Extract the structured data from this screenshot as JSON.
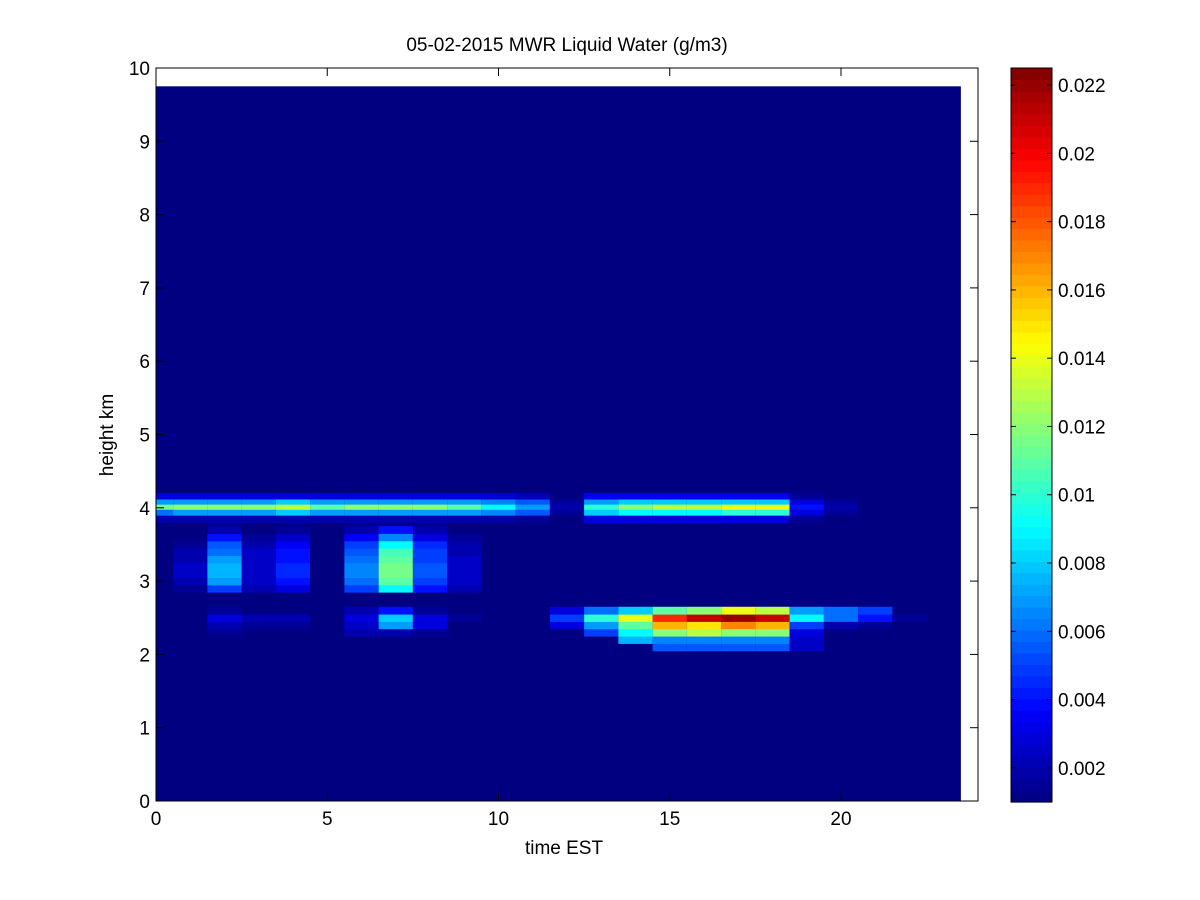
{
  "chart_data": {
    "type": "heatmap",
    "title": "05-02-2015 MWR Liquid Water (g/m3)",
    "xlabel": "time EST",
    "ylabel": "height km",
    "xlim": [
      0,
      24
    ],
    "ylim": [
      0,
      10
    ],
    "xticks": [
      0,
      5,
      10,
      15,
      20
    ],
    "yticks": [
      0,
      1,
      2,
      3,
      4,
      5,
      6,
      7,
      8,
      9,
      10
    ],
    "colormap": "jet",
    "colorbar": {
      "clim": [
        0.001,
        0.0225
      ],
      "ticks": [
        0.002,
        0.004,
        0.006,
        0.008,
        0.01,
        0.012,
        0.014,
        0.016,
        0.018,
        0.02,
        0.022
      ],
      "tick_labels": [
        "0.002",
        "0.004",
        "0.006",
        "0.008",
        "0.01",
        "0.012",
        "0.014",
        "0.016",
        "0.018",
        "0.02",
        "0.022"
      ]
    },
    "data_extent": {
      "x": [
        0,
        23.5
      ],
      "y": [
        0,
        9.75
      ]
    },
    "background_value": 0.001,
    "time_bins": [
      0,
      1,
      2,
      3,
      4,
      5,
      6,
      7,
      8,
      9,
      10,
      11,
      12,
      13,
      14,
      15,
      16,
      17,
      18,
      19,
      20,
      21,
      22,
      23
    ],
    "height_bins": [
      [
        2.05,
        2.15
      ],
      [
        2.15,
        2.25
      ],
      [
        2.25,
        2.35
      ],
      [
        2.35,
        2.45
      ],
      [
        2.45,
        2.55
      ],
      [
        2.55,
        2.65
      ],
      [
        2.85,
        2.95
      ],
      [
        2.95,
        3.05
      ],
      [
        3.05,
        3.15
      ],
      [
        3.15,
        3.25
      ],
      [
        3.25,
        3.35
      ],
      [
        3.35,
        3.45
      ],
      [
        3.45,
        3.55
      ],
      [
        3.55,
        3.65
      ],
      [
        3.65,
        3.75
      ],
      [
        3.8,
        3.9
      ],
      [
        3.9,
        3.98
      ],
      [
        3.98,
        4.05
      ],
      [
        4.05,
        4.12
      ],
      [
        4.12,
        4.2
      ]
    ],
    "values": [
      [
        0.001,
        0.001,
        0.001,
        0.001,
        0.001,
        0.001,
        0.001,
        0.001,
        0.001,
        0.001,
        0.001,
        0.001,
        0.001,
        0.001,
        0.001,
        0.0055,
        0.0055,
        0.0055,
        0.0055,
        0.0025,
        0.001,
        0.001,
        0.001,
        0.001
      ],
      [
        0.001,
        0.001,
        0.001,
        0.001,
        0.001,
        0.001,
        0.001,
        0.001,
        0.001,
        0.001,
        0.001,
        0.001,
        0.001,
        0.001,
        0.0075,
        0.0065,
        0.0065,
        0.0065,
        0.0065,
        0.0025,
        0.001,
        0.001,
        0.001,
        0.001
      ],
      [
        0.001,
        0.001,
        0.0015,
        0.001,
        0.001,
        0.001,
        0.002,
        0.002,
        0.0015,
        0.001,
        0.001,
        0.001,
        0.001,
        0.005,
        0.009,
        0.012,
        0.013,
        0.012,
        0.012,
        0.003,
        0.001,
        0.001,
        0.001,
        0.001
      ],
      [
        0.001,
        0.001,
        0.002,
        0.0015,
        0.0015,
        0.001,
        0.0025,
        0.007,
        0.003,
        0.001,
        0.001,
        0.001,
        0.003,
        0.007,
        0.011,
        0.016,
        0.015,
        0.017,
        0.016,
        0.005,
        0.002,
        0.0015,
        0.001,
        0.001
      ],
      [
        0.001,
        0.001,
        0.003,
        0.002,
        0.002,
        0.001,
        0.003,
        0.008,
        0.003,
        0.0015,
        0.001,
        0.001,
        0.005,
        0.01,
        0.014,
        0.019,
        0.021,
        0.022,
        0.021,
        0.009,
        0.006,
        0.004,
        0.0015,
        0.001
      ],
      [
        0.001,
        0.001,
        0.0015,
        0.001,
        0.001,
        0.001,
        0.002,
        0.004,
        0.0015,
        0.001,
        0.001,
        0.001,
        0.003,
        0.006,
        0.008,
        0.011,
        0.012,
        0.014,
        0.013,
        0.007,
        0.006,
        0.005,
        0.001,
        0.001
      ],
      [
        0.001,
        0.0015,
        0.005,
        0.002,
        0.003,
        0.001,
        0.005,
        0.009,
        0.004,
        0.002,
        0.001,
        0.001,
        0.001,
        0.001,
        0.001,
        0.001,
        0.001,
        0.001,
        0.001,
        0.001,
        0.001,
        0.001,
        0.001,
        0.001
      ],
      [
        0.001,
        0.002,
        0.007,
        0.0025,
        0.004,
        0.001,
        0.006,
        0.011,
        0.005,
        0.0025,
        0.001,
        0.001,
        0.001,
        0.001,
        0.001,
        0.001,
        0.001,
        0.001,
        0.001,
        0.001,
        0.001,
        0.001,
        0.001,
        0.001
      ],
      [
        0.001,
        0.0025,
        0.0075,
        0.0025,
        0.0045,
        0.001,
        0.0065,
        0.0115,
        0.0055,
        0.0025,
        0.001,
        0.001,
        0.001,
        0.001,
        0.001,
        0.001,
        0.001,
        0.001,
        0.001,
        0.001,
        0.001,
        0.001,
        0.001,
        0.001
      ],
      [
        0.001,
        0.0025,
        0.0075,
        0.0025,
        0.0045,
        0.001,
        0.0065,
        0.0115,
        0.0055,
        0.0025,
        0.001,
        0.001,
        0.001,
        0.001,
        0.001,
        0.001,
        0.001,
        0.001,
        0.001,
        0.001,
        0.001,
        0.001,
        0.001,
        0.001
      ],
      [
        0.001,
        0.002,
        0.007,
        0.0025,
        0.004,
        0.001,
        0.006,
        0.011,
        0.005,
        0.0025,
        0.001,
        0.001,
        0.001,
        0.001,
        0.001,
        0.001,
        0.001,
        0.001,
        0.001,
        0.001,
        0.001,
        0.001,
        0.001,
        0.001
      ],
      [
        0.001,
        0.002,
        0.006,
        0.0025,
        0.004,
        0.001,
        0.0055,
        0.0105,
        0.005,
        0.002,
        0.001,
        0.001,
        0.001,
        0.001,
        0.001,
        0.001,
        0.001,
        0.001,
        0.001,
        0.001,
        0.001,
        0.001,
        0.001,
        0.001
      ],
      [
        0.001,
        0.0015,
        0.0055,
        0.002,
        0.0035,
        0.001,
        0.005,
        0.009,
        0.0045,
        0.002,
        0.001,
        0.001,
        0.001,
        0.001,
        0.001,
        0.001,
        0.001,
        0.001,
        0.001,
        0.001,
        0.001,
        0.001,
        0.001,
        0.001
      ],
      [
        0.001,
        0.001,
        0.004,
        0.0015,
        0.0025,
        0.001,
        0.0035,
        0.0065,
        0.003,
        0.0015,
        0.001,
        0.001,
        0.001,
        0.001,
        0.001,
        0.001,
        0.001,
        0.001,
        0.001,
        0.001,
        0.001,
        0.001,
        0.001,
        0.001
      ],
      [
        0.001,
        0.001,
        0.002,
        0.001,
        0.0015,
        0.001,
        0.002,
        0.004,
        0.002,
        0.001,
        0.001,
        0.001,
        0.001,
        0.001,
        0.001,
        0.001,
        0.001,
        0.001,
        0.001,
        0.001,
        0.001,
        0.001,
        0.001,
        0.001
      ],
      [
        0.002,
        0.002,
        0.002,
        0.002,
        0.002,
        0.002,
        0.002,
        0.002,
        0.002,
        0.002,
        0.0018,
        0.0015,
        0.001,
        0.003,
        0.003,
        0.003,
        0.003,
        0.003,
        0.003,
        0.0015,
        0.001,
        0.001,
        0.001,
        0.001
      ],
      [
        0.006,
        0.007,
        0.007,
        0.007,
        0.008,
        0.007,
        0.007,
        0.007,
        0.007,
        0.007,
        0.0065,
        0.0055,
        0.0015,
        0.008,
        0.009,
        0.009,
        0.009,
        0.01,
        0.01,
        0.003,
        0.0015,
        0.001,
        0.001,
        0.001
      ],
      [
        0.0115,
        0.012,
        0.012,
        0.012,
        0.013,
        0.011,
        0.012,
        0.012,
        0.012,
        0.011,
        0.009,
        0.007,
        0.002,
        0.01,
        0.012,
        0.013,
        0.013,
        0.014,
        0.014,
        0.004,
        0.002,
        0.001,
        0.001,
        0.001
      ],
      [
        0.007,
        0.007,
        0.007,
        0.007,
        0.008,
        0.007,
        0.007,
        0.007,
        0.007,
        0.007,
        0.0065,
        0.0055,
        0.0015,
        0.007,
        0.008,
        0.008,
        0.008,
        0.008,
        0.008,
        0.003,
        0.0015,
        0.001,
        0.001,
        0.001
      ],
      [
        0.003,
        0.003,
        0.003,
        0.003,
        0.003,
        0.003,
        0.003,
        0.003,
        0.003,
        0.003,
        0.0028,
        0.0022,
        0.001,
        0.0035,
        0.0035,
        0.0035,
        0.0035,
        0.0035,
        0.0035,
        0.0015,
        0.001,
        0.001,
        0.001,
        0.001
      ]
    ]
  }
}
